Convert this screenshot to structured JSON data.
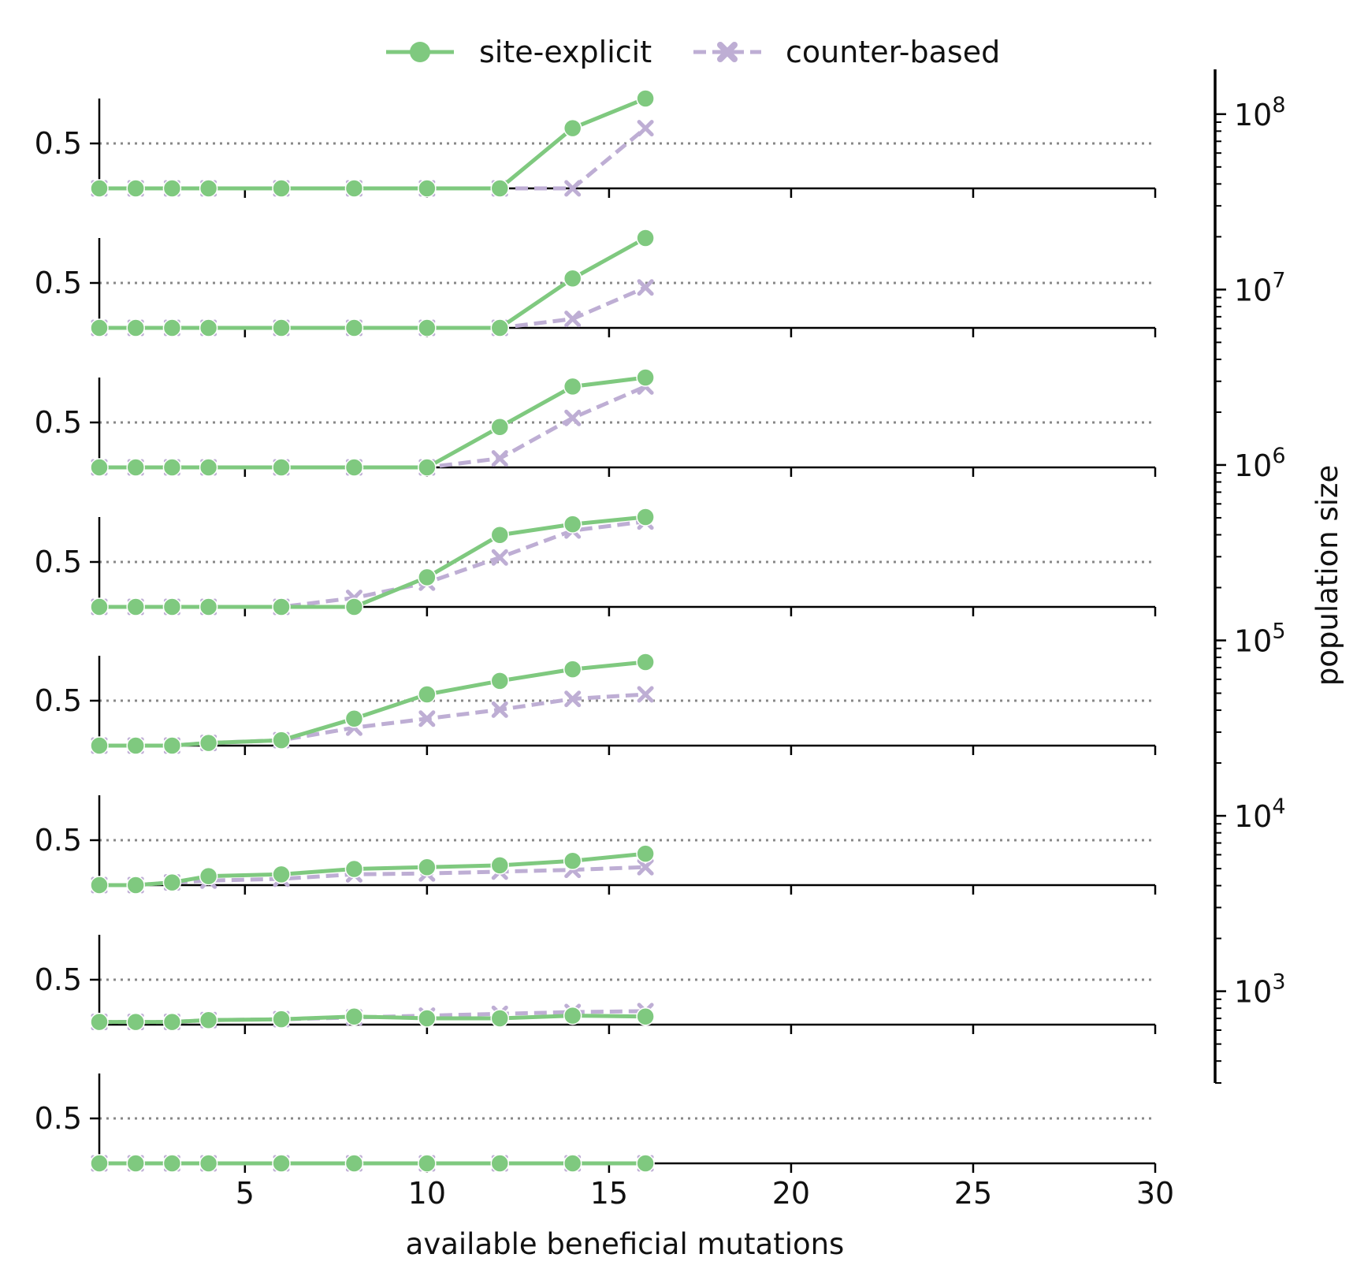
{
  "chart_data": {
    "type": "line",
    "xlabel": "available beneficial mutations",
    "xlim": [
      1,
      30
    ],
    "x_ticks": [
      5,
      10,
      15,
      20,
      25,
      30
    ],
    "y_tick": 0.5,
    "ylim": [
      0,
      1
    ],
    "reference_line_y": 0.5,
    "legend": {
      "placement": "top-center",
      "entries": [
        {
          "label": "site-explicit",
          "series": "site_explicit"
        },
        {
          "label": "counter-based",
          "series": "counter_based"
        }
      ]
    },
    "colors": {
      "site_explicit": "#7fc97f",
      "counter_based": "#beaed4",
      "reference": "#888888"
    },
    "colorbar": {
      "label": "population size",
      "scale": "log",
      "range": [
        300,
        180000000
      ],
      "ticks": [
        {
          "value": 1000,
          "base": "10",
          "exp": "3"
        },
        {
          "value": 10000,
          "base": "10",
          "exp": "4"
        },
        {
          "value": 100000,
          "base": "10",
          "exp": "5"
        },
        {
          "value": 1000000,
          "base": "10",
          "exp": "6"
        },
        {
          "value": 10000000,
          "base": "10",
          "exp": "7"
        },
        {
          "value": 100000000,
          "base": "10",
          "exp": "8"
        }
      ]
    },
    "x": [
      1,
      2,
      3,
      4,
      6,
      8,
      10,
      12,
      14,
      16
    ],
    "panels": [
      {
        "site_explicit": [
          0,
          0,
          0,
          0,
          0,
          0,
          0,
          0,
          0.67,
          1.0
        ],
        "counter_based": [
          0,
          0,
          0,
          0,
          0,
          0,
          0,
          0,
          0,
          0.67
        ]
      },
      {
        "site_explicit": [
          0,
          0,
          0,
          0,
          0,
          0,
          0,
          0,
          0.55,
          1.0
        ],
        "counter_based": [
          0,
          0,
          0,
          0,
          0,
          0,
          0,
          0,
          0.1,
          0.45
        ]
      },
      {
        "site_explicit": [
          0,
          0,
          0,
          0,
          0,
          0,
          0,
          0.45,
          0.9,
          1.0
        ],
        "counter_based": [
          0,
          0,
          0,
          0,
          0,
          0,
          0,
          0.1,
          0.55,
          0.9
        ]
      },
      {
        "site_explicit": [
          0,
          0,
          0,
          0,
          0,
          0,
          0.33,
          0.8,
          0.92,
          1.0
        ],
        "counter_based": [
          0,
          0,
          0,
          0,
          0,
          0.1,
          0.27,
          0.55,
          0.85,
          0.95
        ]
      },
      {
        "site_explicit": [
          0,
          0,
          0,
          0.03,
          0.06,
          0.3,
          0.57,
          0.72,
          0.85,
          0.93
        ],
        "counter_based": [
          0,
          0,
          0,
          0.03,
          0.06,
          0.2,
          0.3,
          0.4,
          0.52,
          0.57
        ]
      },
      {
        "site_explicit": [
          0,
          0,
          0.03,
          0.1,
          0.12,
          0.18,
          0.2,
          0.22,
          0.27,
          0.35
        ],
        "counter_based": [
          0,
          0,
          0.03,
          0.05,
          0.07,
          0.12,
          0.13,
          0.15,
          0.17,
          0.2
        ]
      },
      {
        "site_explicit": [
          0.03,
          0.03,
          0.03,
          0.05,
          0.06,
          0.09,
          0.07,
          0.07,
          0.1,
          0.09
        ],
        "counter_based": [
          0.03,
          0.03,
          0.03,
          0.05,
          0.06,
          0.08,
          0.1,
          0.12,
          0.14,
          0.15
        ]
      },
      {
        "site_explicit": [
          0,
          0,
          0,
          0,
          0,
          0,
          0,
          0,
          0,
          0
        ],
        "counter_based": [
          0,
          0,
          0,
          0,
          0,
          0,
          0,
          0,
          0,
          0
        ]
      }
    ]
  }
}
